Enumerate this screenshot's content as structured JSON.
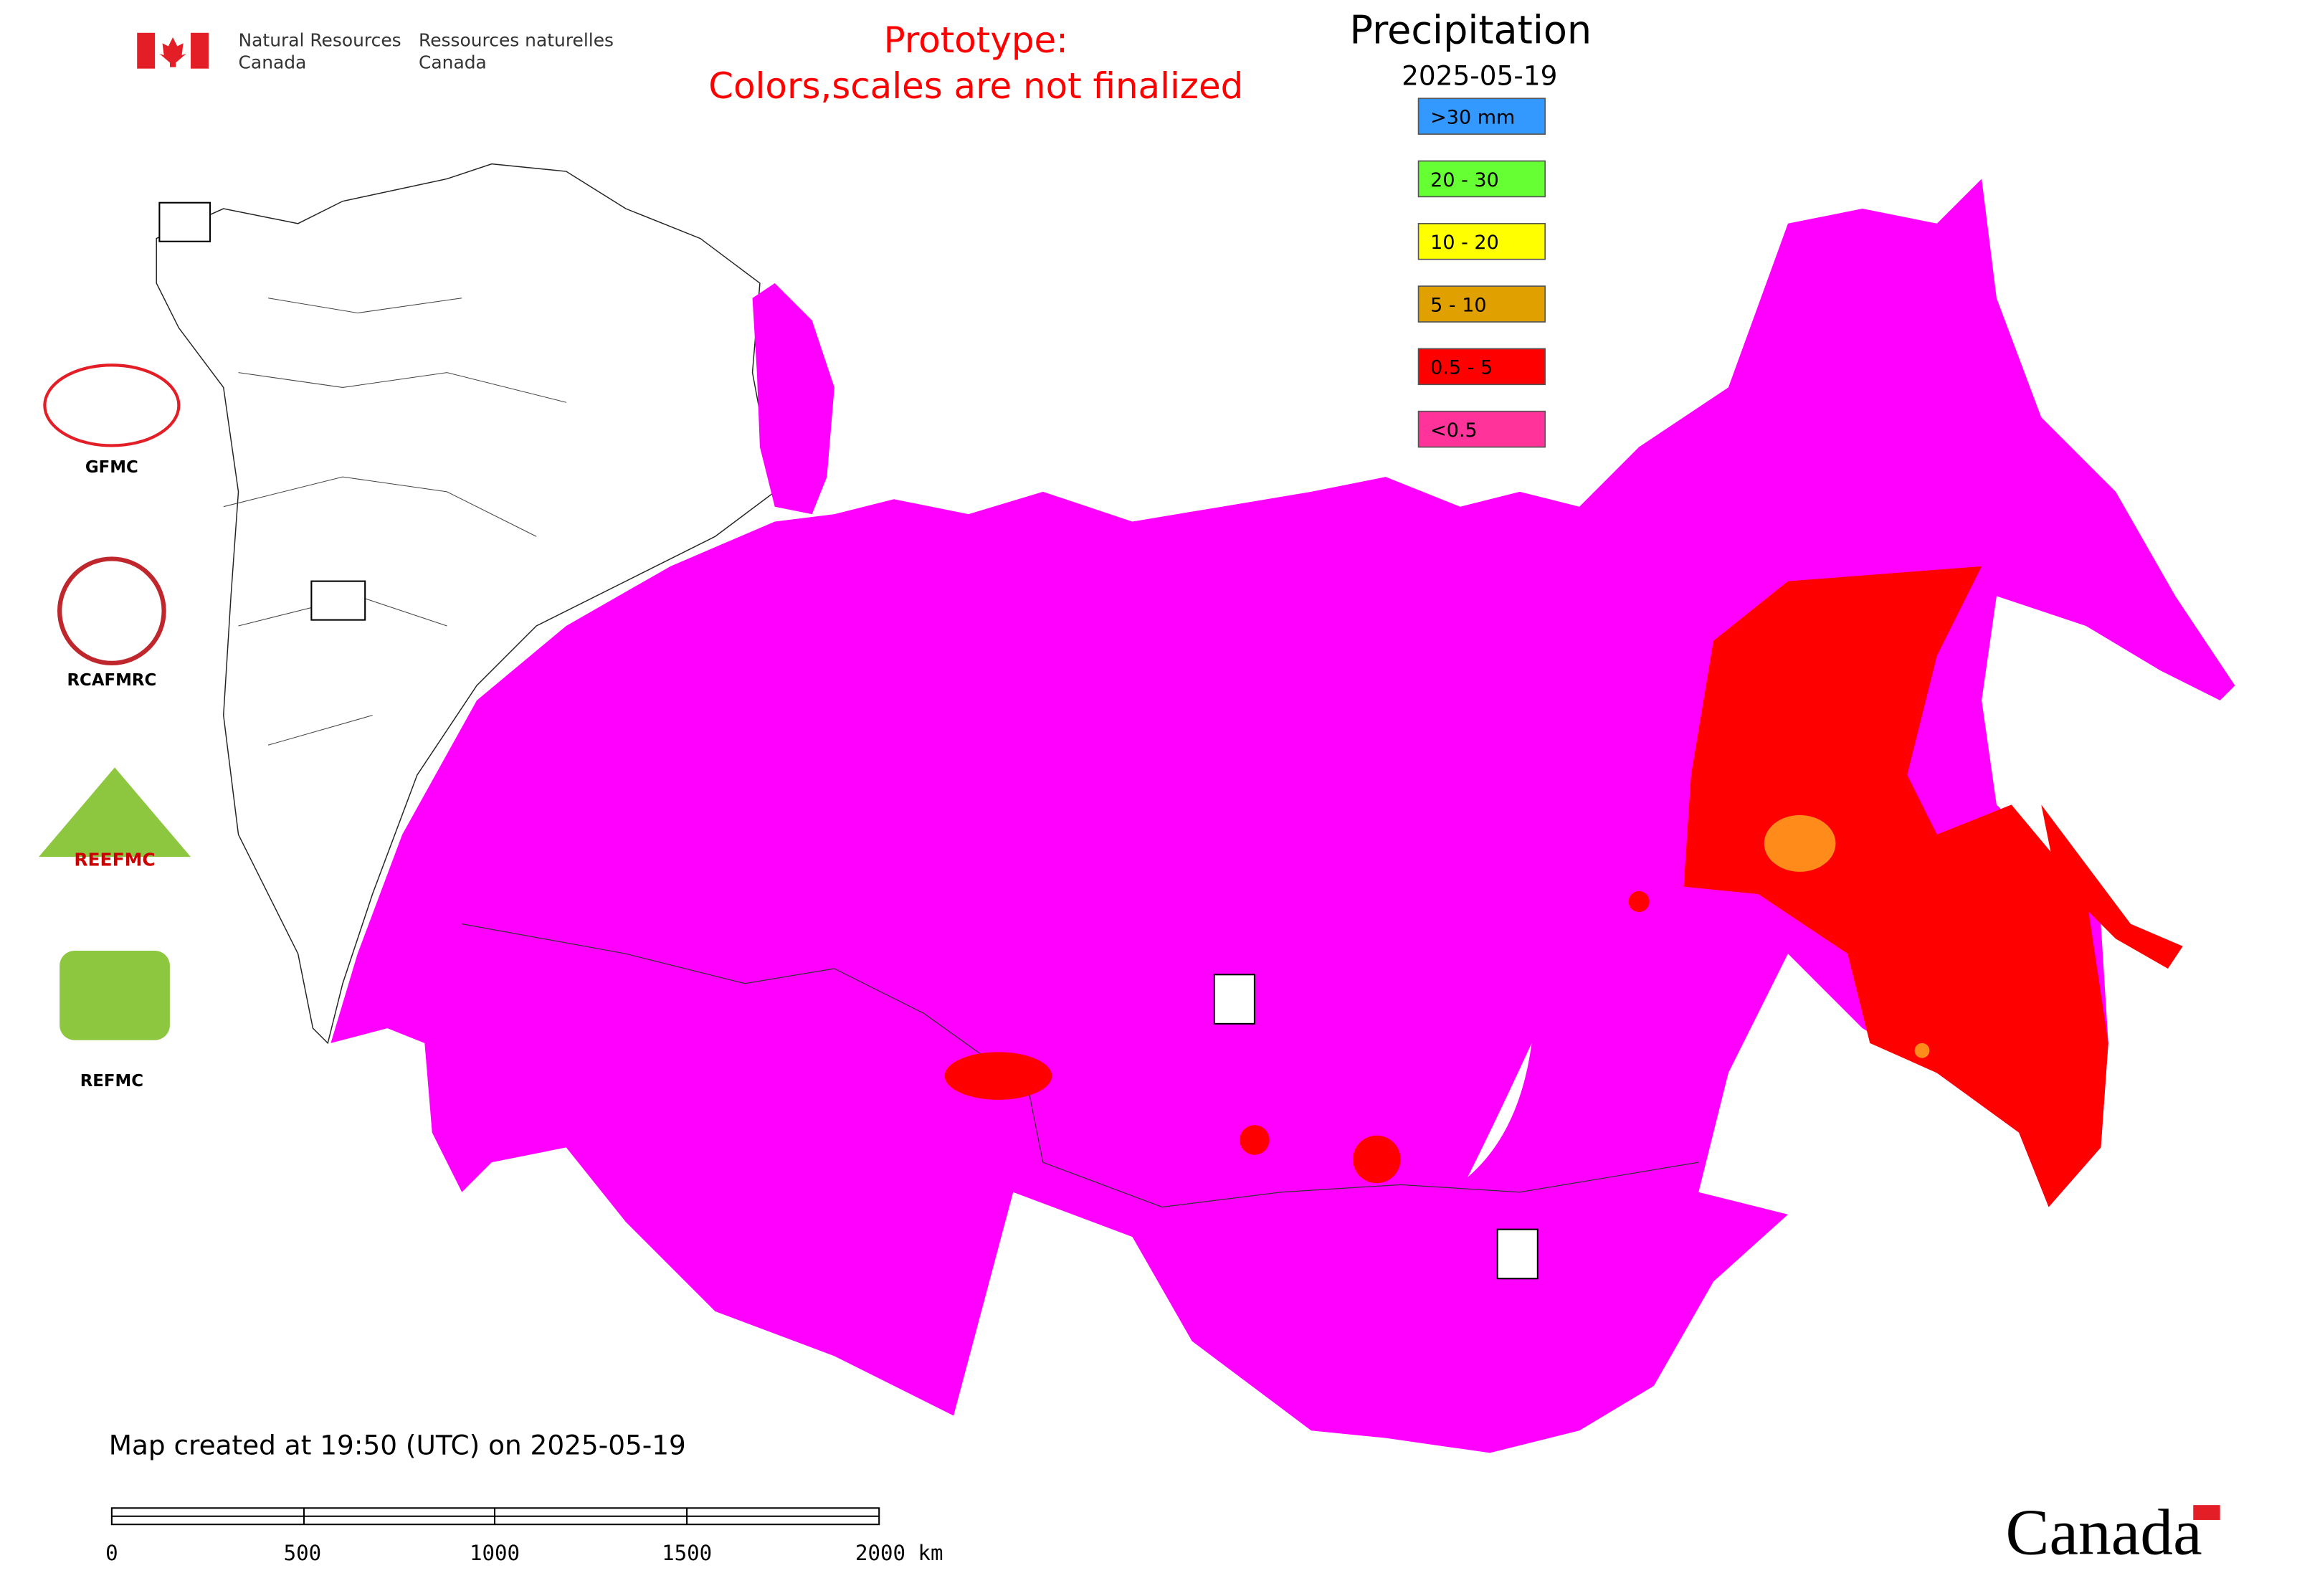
{
  "header": {
    "org_en": [
      "Natural Resources",
      "Canada"
    ],
    "org_fr": [
      "Ressources naturelles",
      "Canada"
    ]
  },
  "notice": [
    "Prototype:",
    "Colors,scales are not finalized"
  ],
  "legend": {
    "title": "Precipitation",
    "date": "2025-05-19",
    "items": [
      {
        "label": ">30 mm",
        "color": "#3399ff"
      },
      {
        "label": "20 - 30",
        "color": "#66ff33"
      },
      {
        "label": "10 - 20",
        "color": "#ffff00"
      },
      {
        "label": "5 - 10",
        "color": "#e0a000"
      },
      {
        "label": "0.5 - 5",
        "color": "#ff0000"
      },
      {
        "label": "<0.5",
        "color": "#ff3399"
      }
    ]
  },
  "logos": [
    "GFMC",
    "RCAFMRC",
    "REEFMC",
    "REFMC"
  ],
  "footer": "Map created at 19:50 (UTC) on 2025-05-19",
  "scale_bar": [
    "0",
    "500",
    "1000",
    "1500",
    "2000 km"
  ],
  "wordmark": "Canada"
}
